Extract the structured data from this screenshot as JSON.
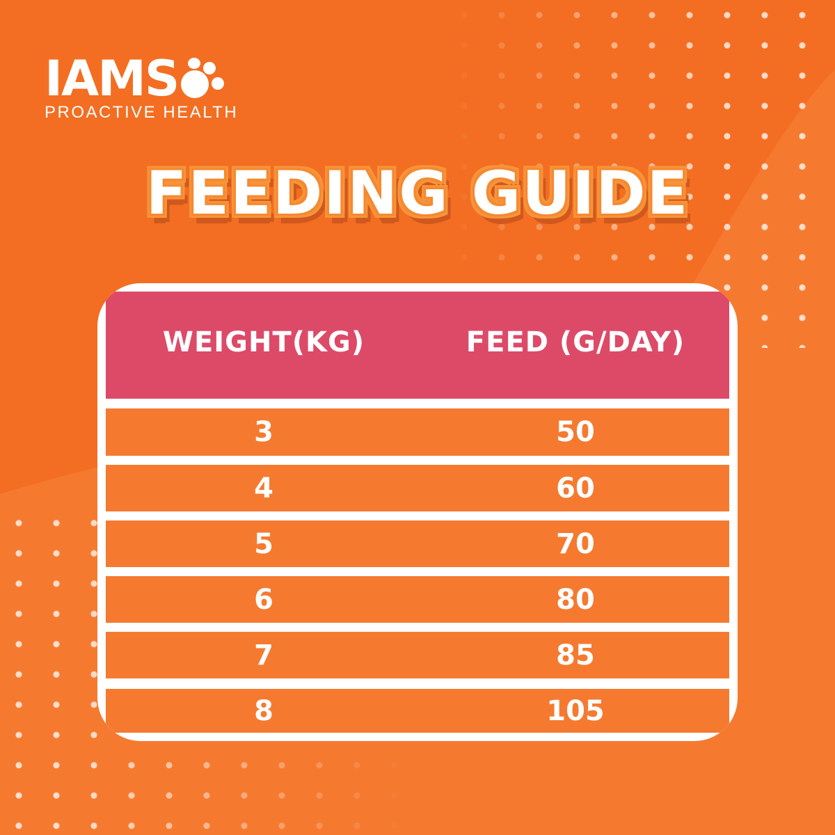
{
  "brand": {
    "name": "IAMS",
    "tagline": "PROACTIVE HEALTH",
    "trademark": "™"
  },
  "title": "FEEDING GUIDE",
  "colors": {
    "background": "#F36E22",
    "header": "#DD4A68",
    "row": "#F57A30",
    "border": "#FFFFFF"
  },
  "table": {
    "headers": [
      "WEIGHT(KG)",
      "FEED (G/DAY)"
    ],
    "rows": [
      [
        "3",
        "50"
      ],
      [
        "4",
        "60"
      ],
      [
        "5",
        "70"
      ],
      [
        "6",
        "80"
      ],
      [
        "7",
        "85"
      ],
      [
        "8",
        "105"
      ]
    ]
  }
}
